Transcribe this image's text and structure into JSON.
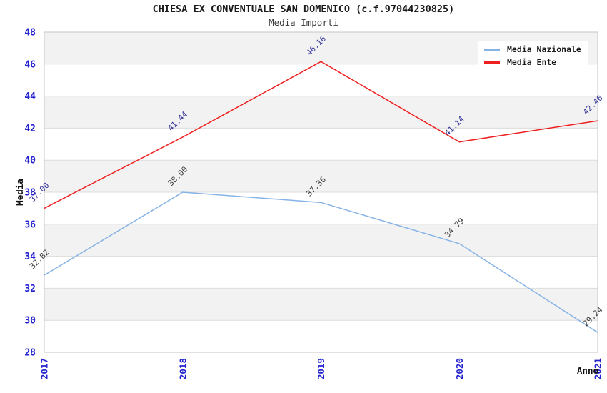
{
  "chart_data": {
    "type": "line",
    "title": "CHIESA EX CONVENTUALE SAN DOMENICO (c.f.97044230825)",
    "subtitle": "Media Importi",
    "xlabel": "Anno",
    "ylabel": "Media",
    "categories": [
      "2017",
      "2018",
      "2019",
      "2020",
      "2021"
    ],
    "series": [
      {
        "name": "Media Nazionale",
        "color": "#86b3e6",
        "label_color": "#3d3d3d",
        "values": [
          32.82,
          38.0,
          37.36,
          34.79,
          29.24
        ]
      },
      {
        "name": "Media Ente",
        "color": "#ee1f1f",
        "label_color": "#333399",
        "values": [
          37.0,
          41.44,
          46.16,
          41.14,
          42.46
        ]
      }
    ],
    "ylim": [
      28,
      48
    ],
    "ytick_step": 2,
    "yticks": [
      28,
      30,
      32,
      34,
      36,
      38,
      40,
      42,
      44,
      46,
      48
    ],
    "grid": true,
    "legend_position": "top-right",
    "colors": {
      "tick_label": "#2323cf",
      "band_fill": "#f2f2f2",
      "grid_line": "#dcdcdc",
      "frame": "#c6c6c6",
      "title_text": "#1a1a1a",
      "subtitle_text": "#3c3c3c"
    }
  }
}
